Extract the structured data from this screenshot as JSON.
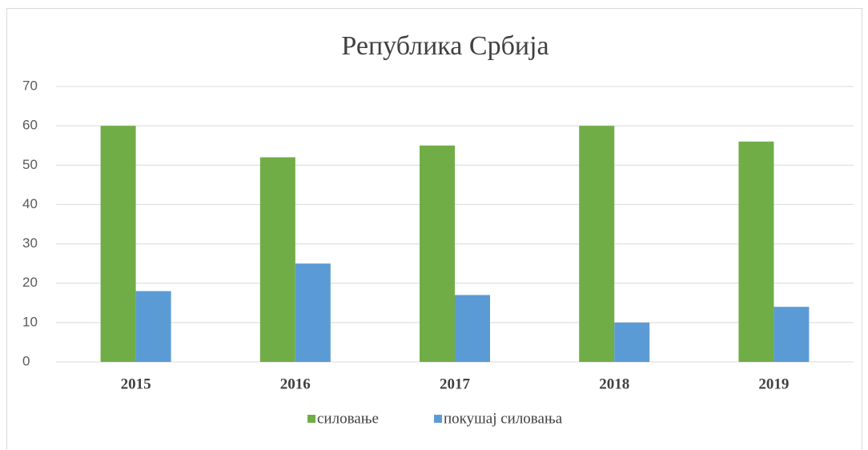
{
  "chart_data": {
    "type": "bar",
    "title": "Република Србија",
    "categories": [
      "2015",
      "2016",
      "2017",
      "2018",
      "2019"
    ],
    "series": [
      {
        "name": "силовање",
        "color": "#70ad47",
        "values": [
          60,
          52,
          55,
          60,
          56
        ]
      },
      {
        "name": "покушај силовања",
        "color": "#5b9bd5",
        "values": [
          18,
          25,
          17,
          10,
          14
        ]
      }
    ],
    "ylim": [
      0,
      70
    ],
    "yticks": [
      0,
      10,
      20,
      30,
      40,
      50,
      60,
      70
    ],
    "grid": true,
    "legend": "bottom"
  }
}
